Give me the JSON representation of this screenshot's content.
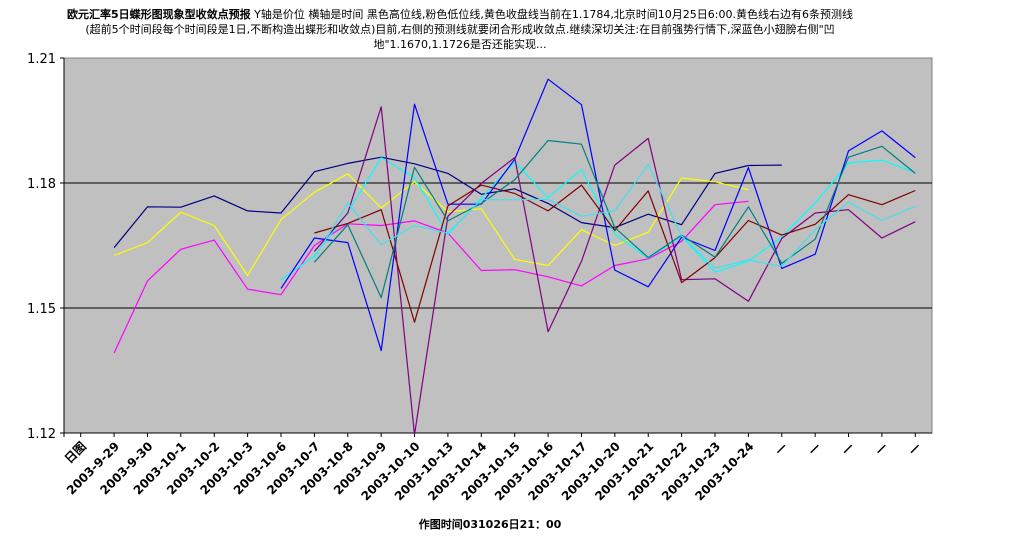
{
  "title": {
    "bold": "欧元汇率5日蝶形图现象型收敛点预报",
    "rest": " Y轴是价位 横轴是时间 黑色高位线,粉色低位线,黄色收盘线当前在1.1784,北京时间10月25日6:00.黄色线右边有6条预测线(超前5个时间段每个时间段是1日,不断构造出蝶形和收敛点)目前,右侧的预测线就要闭合形成收敛点.继续深切关注:在目前强势行情下,深蓝色小翅膀右侧\"凹地\"1.1670,1.1726是否还能实现..."
  },
  "footer": "作图时间031026日21：00",
  "colors": {
    "plot_bg": "#c0c0c0",
    "plot_border": "#808080",
    "gridline": "#000000",
    "high": "#000080",
    "low": "#ff00ff",
    "close": "#ffff00",
    "pred_cyan": "#00ffff",
    "pred_blue": "#0000ff",
    "pred_purple": "#800080",
    "pred_maroon": "#800000",
    "pred_teal": "#008080",
    "pred_cyan2": "#40e0f0"
  },
  "chart_data": {
    "type": "line",
    "categories": [
      "日图",
      "2003-9-29",
      "2003-9-30",
      "2003-10-1",
      "2003-10-2",
      "2003-10-3",
      "2003-10-6",
      "2003-10-7",
      "2003-10-8",
      "2003-10-9",
      "2003-10-10",
      "2003-10-13",
      "2003-10-14",
      "2003-10-15",
      "2003-10-16",
      "2003-10-17",
      "2003-10-20",
      "2003-10-21",
      "2003-10-22",
      "2003-10-23",
      "2003-10-24",
      "—",
      "—",
      "—",
      "—",
      "—"
    ],
    "ylim": [
      1.12,
      1.21
    ],
    "yticks": [
      "1.21",
      "1.18",
      "1.15",
      "1.12"
    ],
    "gridlines": [
      1.18,
      1.15
    ],
    "series": [
      {
        "color": "high",
        "values": [
          null,
          1.1645,
          1.1743,
          1.1742,
          1.1769,
          1.1733,
          1.1728,
          1.1827,
          1.1847,
          1.1862,
          1.1846,
          1.1823,
          1.1773,
          1.1786,
          1.1751,
          1.1705,
          1.1693,
          1.1725,
          1.17,
          1.1823,
          1.1842,
          1.1843,
          null,
          null,
          null,
          null
        ]
      },
      {
        "color": "low",
        "values": [
          null,
          1.1392,
          1.1565,
          1.1641,
          1.1663,
          1.1545,
          1.1532,
          1.165,
          1.1702,
          1.1698,
          1.1709,
          1.168,
          1.159,
          1.1592,
          1.1575,
          1.1553,
          1.1602,
          1.1618,
          1.166,
          1.1748,
          1.1756,
          null,
          null,
          null,
          null,
          null
        ]
      },
      {
        "color": "close",
        "values": [
          null,
          1.1626,
          1.1657,
          1.173,
          1.1698,
          1.1578,
          1.1712,
          1.1778,
          1.1822,
          1.174,
          1.1803,
          1.1731,
          1.1738,
          1.1617,
          1.1602,
          1.1688,
          1.165,
          1.1682,
          1.1812,
          1.1803,
          1.1784,
          null,
          null,
          null,
          null,
          null
        ]
      },
      {
        "color": "pred_cyan",
        "values": [
          null,
          null,
          null,
          null,
          null,
          null,
          1.1567,
          1.1625,
          1.173,
          1.1861,
          1.1813,
          1.1677,
          1.1763,
          1.1851,
          1.1765,
          1.1832,
          1.1677,
          1.162,
          1.1672,
          1.1586,
          1.1612,
          1.1671,
          1.1752,
          1.1848,
          1.1855,
          1.1825
        ]
      },
      {
        "color": "pred_blue",
        "values": [
          null,
          null,
          null,
          null,
          null,
          null,
          1.1547,
          1.1668,
          1.1657,
          1.1398,
          1.1989,
          1.1749,
          1.1749,
          1.1857,
          1.2049,
          1.1988,
          1.1591,
          1.1551,
          1.167,
          1.1638,
          1.1837,
          1.1595,
          1.1629,
          1.1877,
          1.1925,
          1.1861
        ]
      },
      {
        "color": "pred_purple",
        "values": [
          null,
          null,
          null,
          null,
          null,
          null,
          null,
          1.1636,
          1.1728,
          1.1983,
          1.1196,
          1.172,
          1.1799,
          1.1861,
          1.1443,
          1.1612,
          1.1843,
          1.1907,
          1.1568,
          1.157,
          1.1516,
          1.1667,
          1.1728,
          1.1736,
          1.1668,
          1.1707
        ]
      },
      {
        "color": "pred_maroon",
        "values": [
          null,
          null,
          null,
          null,
          null,
          null,
          null,
          1.168,
          1.1703,
          1.1736,
          1.1466,
          1.1745,
          1.1795,
          1.1775,
          1.1733,
          1.1795,
          1.1686,
          1.1781,
          1.1561,
          1.1621,
          1.171,
          1.1675,
          1.1701,
          1.1772,
          1.1748,
          1.1782
        ]
      },
      {
        "color": "pred_teal",
        "values": [
          null,
          null,
          null,
          null,
          null,
          null,
          null,
          1.161,
          1.17,
          1.1525,
          1.1838,
          1.1709,
          1.1751,
          1.1808,
          1.1902,
          1.1893,
          1.1693,
          1.1621,
          1.1675,
          1.1622,
          1.1743,
          1.1607,
          1.1665,
          1.1862,
          1.1888,
          1.1823
        ]
      },
      {
        "color": "pred_cyan2",
        "values": [
          null,
          null,
          null,
          null,
          null,
          null,
          null,
          1.162,
          1.1752,
          1.1652,
          1.1698,
          1.168,
          1.176,
          1.176,
          1.1761,
          1.172,
          1.1733,
          1.1845,
          1.1673,
          1.1596,
          1.1615,
          1.16,
          1.1688,
          1.1754,
          1.171,
          1.1744
        ]
      }
    ]
  }
}
